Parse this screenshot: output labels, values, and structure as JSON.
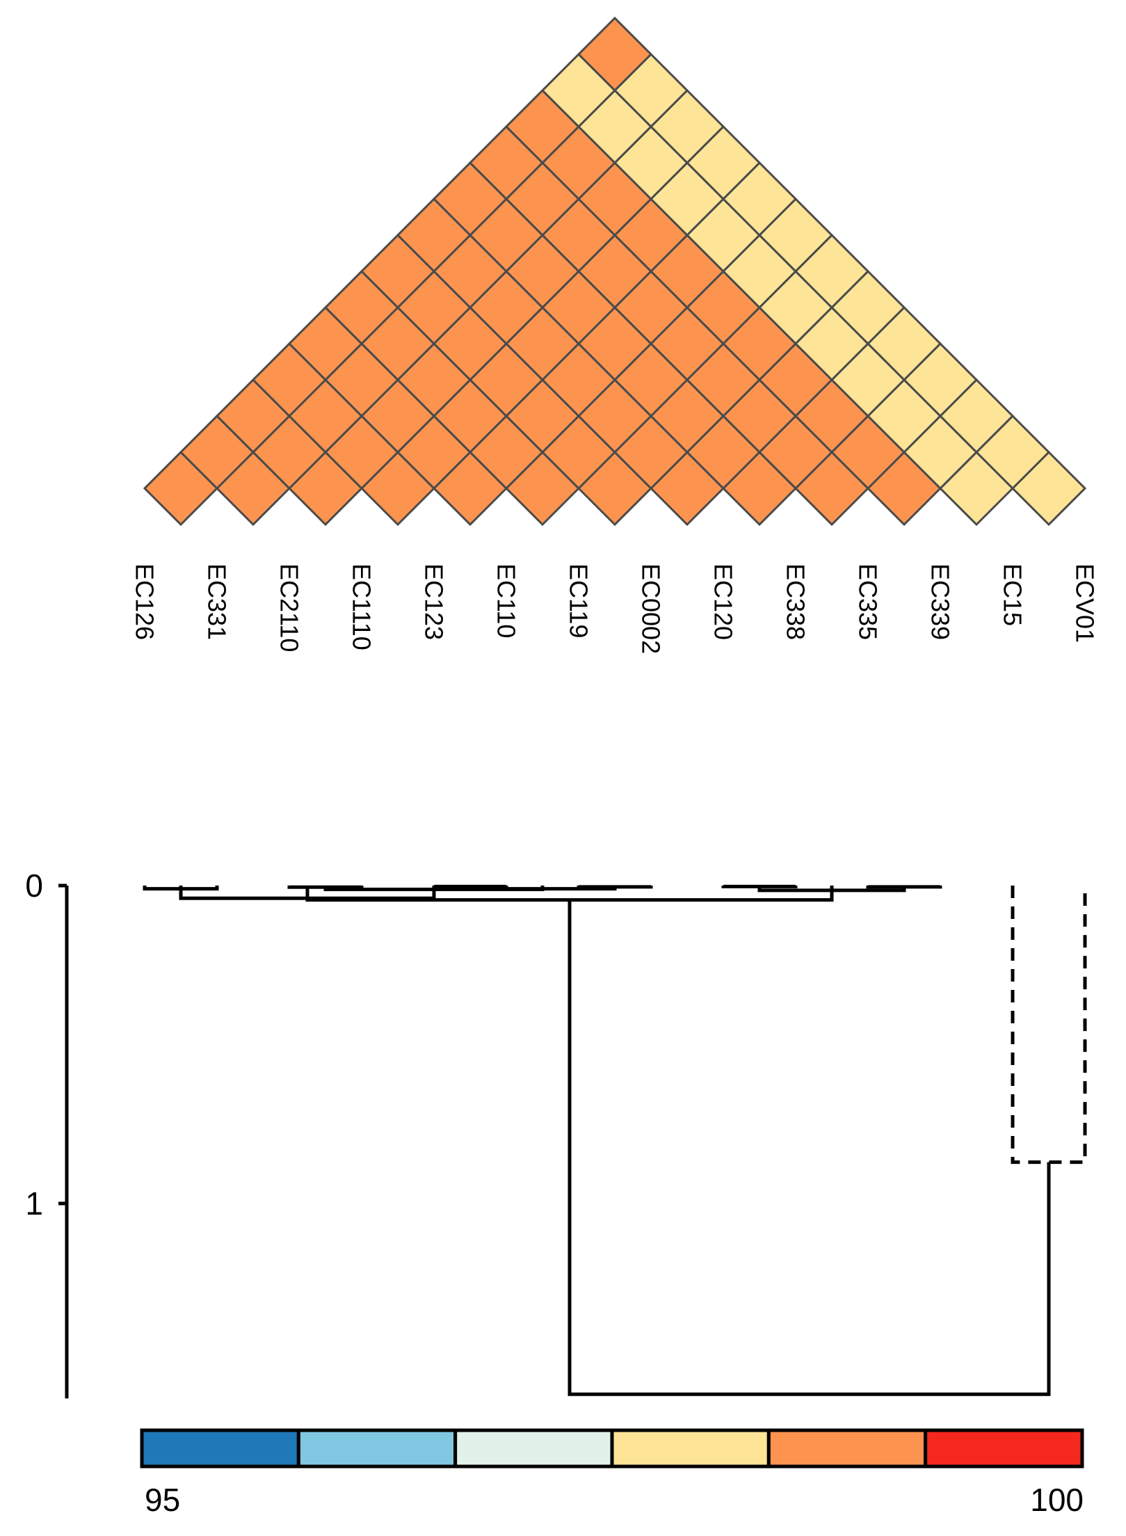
{
  "chart_data": [
    {
      "type": "heatmap",
      "layout": "triangular",
      "labels": [
        "EC126",
        "EC331",
        "EC2110",
        "EC1110",
        "EC123",
        "EC110",
        "EC119",
        "EC0002",
        "EC120",
        "EC338",
        "EC335",
        "EC339",
        "EC15",
        "ECV01"
      ],
      "bins": [
        {
          "color": "#1f78b8"
        },
        {
          "color": "#80c8e2"
        },
        {
          "color": "#e1f2ea"
        },
        {
          "color": "#fde497"
        },
        {
          "color": "#fc9450"
        },
        {
          "color": "#f5281f"
        }
      ],
      "legend_ticks": {
        "min": "95",
        "max": "100"
      },
      "cells": [
        [
          4,
          4,
          4,
          4,
          4,
          4,
          4,
          4,
          4,
          4,
          4,
          3,
          3
        ],
        [
          4,
          4,
          4,
          4,
          4,
          4,
          4,
          4,
          4,
          4,
          3,
          3
        ],
        [
          4,
          4,
          4,
          4,
          4,
          4,
          4,
          4,
          4,
          3,
          3
        ],
        [
          4,
          4,
          4,
          4,
          4,
          4,
          4,
          4,
          3,
          3
        ],
        [
          4,
          4,
          4,
          4,
          4,
          4,
          4,
          3,
          3
        ],
        [
          4,
          4,
          4,
          4,
          4,
          4,
          3,
          3
        ],
        [
          4,
          4,
          4,
          4,
          4,
          3,
          3
        ],
        [
          4,
          4,
          4,
          4,
          3,
          3
        ],
        [
          4,
          4,
          4,
          3,
          3
        ],
        [
          4,
          4,
          3,
          3
        ],
        [
          4,
          3,
          3
        ],
        [
          3,
          3
        ],
        [
          4
        ]
      ]
    },
    {
      "type": "dendrogram",
      "axis_ticks": [
        "0",
        "1"
      ],
      "ylim": [
        0,
        1.6
      ],
      "line_color": "#000000",
      "leaves": [
        {
          "label": "EC126",
          "position": 0
        },
        {
          "label": "EC331",
          "position": 1
        },
        {
          "label": "EC2110",
          "position": 2
        },
        {
          "label": "EC1110",
          "position": 3
        },
        {
          "label": "EC123",
          "position": 4
        },
        {
          "label": "EC110",
          "position": 5
        },
        {
          "label": "EC119",
          "position": 6
        },
        {
          "label": "EC0002",
          "position": 7
        },
        {
          "label": "EC120",
          "position": 8
        },
        {
          "label": "EC338",
          "position": 9
        },
        {
          "label": "EC335",
          "position": 10
        },
        {
          "label": "EC339",
          "position": 11
        },
        {
          "label": "EC15",
          "position": 12
        },
        {
          "label": "ECV01",
          "position": 13
        }
      ],
      "merges": [
        {
          "left": 0.0,
          "right": 1.0,
          "height": 0.01
        },
        {
          "left": 2.0,
          "right": 3.0,
          "height": 0.005
        },
        {
          "left": 4.0,
          "right": 5.0,
          "height": 0.003
        },
        {
          "left": 6.0,
          "right": 7.0,
          "height": 0.004
        },
        {
          "left": 8.0,
          "right": 9.0,
          "height": 0.003
        },
        {
          "left": 10.0,
          "right": 11.0,
          "height": 0.004
        },
        {
          "left": 4.5,
          "right": 6.5,
          "height": 0.01
        },
        {
          "left": 2.5,
          "right": 5.5,
          "height": 0.012
        },
        {
          "left": 0.5,
          "right": 4.0,
          "height": 0.04
        },
        {
          "left": 8.5,
          "right": 10.5,
          "height": 0.015
        },
        {
          "left": 2.25,
          "right": 9.5,
          "height": 0.045
        },
        {
          "left": 12.0,
          "right": 13.0,
          "height": 0.87,
          "dashed": true
        },
        {
          "left": 5.875,
          "right": 12.5,
          "height": 1.6
        }
      ]
    }
  ]
}
